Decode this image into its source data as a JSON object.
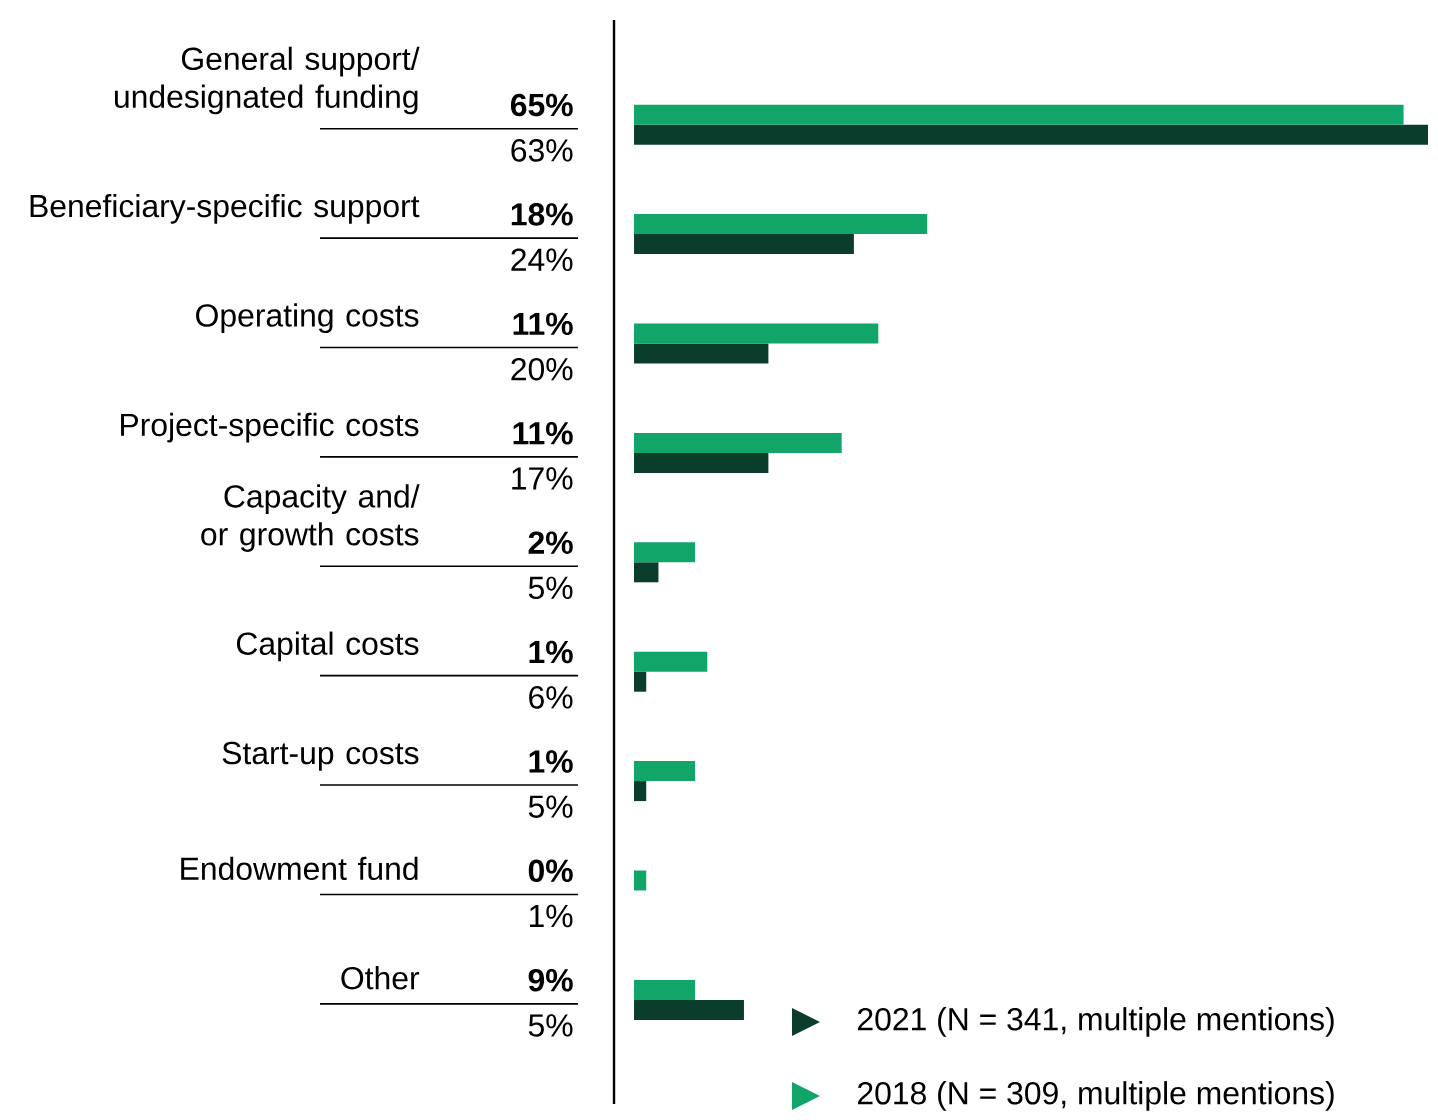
{
  "chart_data": {
    "type": "bar",
    "orientation": "horizontal",
    "categories": [
      "General support/ undesignated funding",
      "Beneficiary-specific support",
      "Operating costs",
      "Project-specific costs",
      "Capacity and/ or growth costs",
      "Capital costs",
      "Start-up costs",
      "Endowment fund",
      "Other"
    ],
    "series": [
      {
        "name": "2021 (N = 341, multiple mentions)",
        "color": "#0b3d2c",
        "values": [
          65,
          18,
          11,
          11,
          2,
          1,
          1,
          0,
          9
        ],
        "value_labels": [
          "65%",
          "18%",
          "11%",
          "11%",
          "2%",
          "1%",
          "1%",
          "0%",
          "9%"
        ]
      },
      {
        "name": "2018 (N = 309, multiple mentions)",
        "color": "#12a56a",
        "values": [
          63,
          24,
          20,
          17,
          5,
          6,
          5,
          1,
          5
        ],
        "value_labels": [
          "63%",
          "24%",
          "20%",
          "17%",
          "5%",
          "6%",
          "5%",
          "1%",
          "5%"
        ]
      }
    ],
    "legend": "bottom right"
  }
}
